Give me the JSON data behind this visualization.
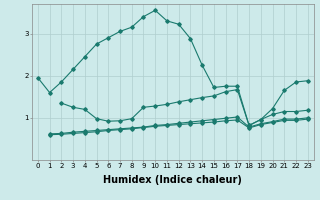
{
  "title": "",
  "xlabel": "Humidex (Indice chaleur)",
  "ylabel": "",
  "bg_color": "#cdeaea",
  "grid_color": "#b0cece",
  "line_color": "#1a7a6e",
  "line1_x": [
    0,
    1,
    2,
    3,
    4,
    5,
    6,
    7,
    8,
    9,
    10,
    11,
    12,
    13,
    14,
    15,
    16,
    17,
    18,
    19,
    20,
    21,
    22,
    23
  ],
  "line1_y": [
    1.95,
    1.6,
    1.85,
    2.15,
    2.45,
    2.75,
    2.9,
    3.05,
    3.15,
    3.4,
    3.55,
    3.3,
    3.22,
    2.88,
    2.25,
    1.72,
    1.75,
    1.75,
    0.82,
    0.96,
    1.22,
    1.65,
    1.85,
    1.88
  ],
  "line2_x": [
    2,
    3,
    4,
    5,
    6,
    7,
    8,
    9,
    10,
    11,
    12,
    13,
    14,
    15,
    16,
    17,
    18,
    19,
    20,
    21,
    22,
    23
  ],
  "line2_y": [
    1.35,
    1.25,
    1.2,
    0.98,
    0.92,
    0.93,
    0.98,
    1.25,
    1.28,
    1.32,
    1.38,
    1.43,
    1.48,
    1.52,
    1.62,
    1.67,
    0.82,
    0.96,
    1.08,
    1.15,
    1.15,
    1.18
  ],
  "line3_x": [
    1,
    2,
    3,
    4,
    5,
    6,
    7,
    8,
    9,
    10,
    11,
    12,
    13,
    14,
    15,
    16,
    17,
    18,
    19,
    20,
    21,
    22,
    23
  ],
  "line3_y": [
    0.62,
    0.63,
    0.66,
    0.68,
    0.7,
    0.72,
    0.74,
    0.76,
    0.78,
    0.82,
    0.84,
    0.87,
    0.9,
    0.93,
    0.96,
    0.99,
    1.02,
    0.78,
    0.86,
    0.91,
    0.97,
    0.97,
    1.0
  ],
  "line4_x": [
    1,
    2,
    3,
    4,
    5,
    6,
    7,
    8,
    9,
    10,
    11,
    12,
    13,
    14,
    15,
    16,
    17,
    18,
    19,
    20,
    21,
    22,
    23
  ],
  "line4_y": [
    0.6,
    0.61,
    0.63,
    0.65,
    0.67,
    0.7,
    0.72,
    0.74,
    0.77,
    0.8,
    0.82,
    0.84,
    0.86,
    0.88,
    0.9,
    0.93,
    0.95,
    0.76,
    0.84,
    0.89,
    0.94,
    0.94,
    0.97
  ],
  "xlim": [
    -0.5,
    23.5
  ],
  "ylim": [
    0,
    3.7
  ],
  "yticks": [
    1,
    2,
    3
  ],
  "xticks": [
    0,
    1,
    2,
    3,
    4,
    5,
    6,
    7,
    8,
    9,
    10,
    11,
    12,
    13,
    14,
    15,
    16,
    17,
    18,
    19,
    20,
    21,
    22,
    23
  ],
  "marker": "D",
  "markersize": 1.8,
  "linewidth": 0.8,
  "tick_fontsize": 5.0,
  "xlabel_fontsize": 7.0,
  "xlabel_fontweight": "bold"
}
